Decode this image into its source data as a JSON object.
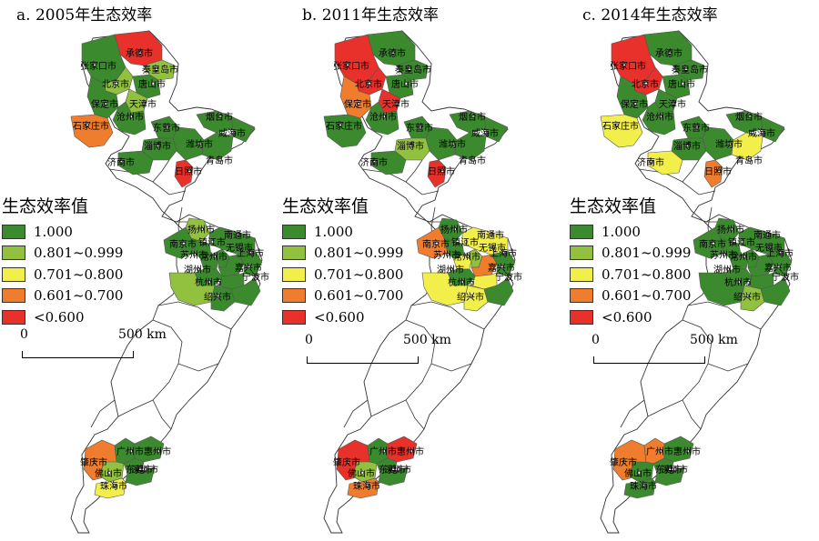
{
  "colors": {
    "c1": "#3c8a2e",
    "c2": "#92c13f",
    "c3": "#f2ef4b",
    "c4": "#ef7d2d",
    "c5": "#e8312a"
  },
  "legend": {
    "title": "生态效率值",
    "items": [
      {
        "label": "1.000",
        "color": "#3c8a2e"
      },
      {
        "label": "0.801~0.999",
        "color": "#92c13f"
      },
      {
        "label": "0.701~0.800",
        "color": "#f2ef4b"
      },
      {
        "label": "0.601~0.700",
        "color": "#ef7d2d"
      },
      {
        "label": "<0.600",
        "color": "#e8312a"
      }
    ]
  },
  "scalebar": {
    "zero": "0",
    "max": "500 km"
  },
  "panels": [
    {
      "title": "a. 2005年生态效率",
      "regions": {
        "chengde": "c5",
        "zhangjiakou": "c1",
        "beijing": "c2",
        "qinhuangdao": "c2",
        "tangshan": "c1",
        "tianjin": "c2",
        "baoding": "c1",
        "cangzhou": "c1",
        "shijiazhuang": "c4",
        "dongying": "c1",
        "weifang": "c1",
        "zibo": "c1",
        "jinan": "c1",
        "yantai": "c1",
        "weihai": "c1",
        "qingdao": "c1",
        "rizhao": "c5",
        "yangzhou": "c2",
        "nantong": "c1",
        "nanjing": "c1",
        "zhenjiang": "c1",
        "changzhou": "c1",
        "wuxi": "c1",
        "suzhou": "c1",
        "shanghai": "c1",
        "huzhou": "c1",
        "jiaxing": "c1",
        "hangzhou": "c2",
        "shaoxing": "c1",
        "ningbo": "c1",
        "zhaoqing": "c4",
        "guangzhou": "c1",
        "huizhou": "c1",
        "foshan": "c2",
        "dongguan": "c1",
        "shenzhen": "c1",
        "zhuhai": "c3"
      },
      "labels": {
        "chengde": "承德市",
        "zhangjiakou": "张家口市",
        "qinhuangdao": "秦皇岛市",
        "beijing": "北京市",
        "tangshan": "唐山市",
        "tianjin": "天津市",
        "baoding": "保定市",
        "cangzhou": "沧州市",
        "shijiazhuang": "石家庄市",
        "yantai": "烟台市",
        "dongying": "东营市",
        "weihai": "威海市",
        "zibo": "淄博市",
        "weifang": "潍坊市",
        "qingdao": "青岛市",
        "jinan": "济南市",
        "rizhao": "日照市",
        "yangzhou": "扬州市",
        "nantong": "南通市",
        "nanjing": "南京市",
        "zhenjiang": "镇江市",
        "changzhou": "常州市",
        "wuxi": "无锡市",
        "shanghai": "上海市",
        "suzhou": "苏州市",
        "jiaxing": "嘉兴市",
        "huzhou": "湖州市",
        "hangzhou": "杭州市",
        "ningbo": "宁波市",
        "shaoxing": "绍兴市",
        "zhaoqing": "肇庆市",
        "guangzhou": "广州市",
        "huizhou": "惠州市",
        "foshan": "佛山市",
        "dongguan": "东莞市",
        "shenzhen": "深圳市",
        "zhuhai": "珠海市"
      }
    },
    {
      "title": "b. 2011年生态效率",
      "regions": {
        "chengde": "c1",
        "zhangjiakou": "c5",
        "beijing": "c5",
        "qinhuangdao": "c1",
        "tangshan": "c1",
        "tianjin": "c5",
        "baoding": "c4",
        "cangzhou": "c1",
        "shijiazhuang": "c1",
        "dongying": "c1",
        "weifang": "c1",
        "zibo": "c2",
        "jinan": "c1",
        "yantai": "c1",
        "weihai": "c1",
        "qingdao": "c1",
        "rizhao": "c5",
        "yangzhou": "c1",
        "nantong": "c3",
        "nanjing": "c4",
        "zhenjiang": "c1",
        "changzhou": "c3",
        "wuxi": "c2",
        "suzhou": "c4",
        "shanghai": "c1",
        "huzhou": "c1",
        "jiaxing": "c3",
        "hangzhou": "c3",
        "shaoxing": "c3",
        "ningbo": "c1",
        "zhaoqing": "c5",
        "guangzhou": "c1",
        "huizhou": "c5",
        "foshan": "c2",
        "dongguan": "c1",
        "shenzhen": "c1",
        "zhuhai": "c4"
      },
      "labels": {
        "chengde": "承德市",
        "zhangjiakou": "张家口市",
        "qinhuangdao": "秦皇岛市",
        "beijing": "北京市",
        "tangshan": "唐山市",
        "tianjin": "天津市",
        "baoding": "保定市",
        "cangzhou": "沧州市",
        "shijiazhuang": "石家庄市",
        "yantai": "烟台市",
        "dongying": "东营市",
        "weihai": "威海市",
        "zibo": "淄博市",
        "weifang": "潍坊市",
        "qingdao": "青岛市",
        "jinan": "济南市",
        "rizhao": "日照市",
        "yangzhou": "扬州市",
        "nantong": "南通市",
        "nanjing": "南京市",
        "zhenjiang": "镇江市",
        "changzhou": "常州市",
        "wuxi": "无锡市",
        "shanghai": "上海市",
        "suzhou": "苏州市",
        "jiaxing": "嘉兴市",
        "huzhou": "湖州市",
        "hangzhou": "杭州市",
        "ningbo": "宁波市",
        "shaoxing": "绍兴市",
        "zhaoqing": "肇庆市",
        "guangzhou": "广州市",
        "huizhou": "惠州市",
        "foshan": "佛山市",
        "dongguan": "东莞市",
        "shenzhen": "深圳市",
        "zhuhai": "珠海市"
      }
    },
    {
      "title": "c. 2014年生态效率",
      "regions": {
        "chengde": "c1",
        "zhangjiakou": "c5",
        "beijing": "c5",
        "qinhuangdao": "c1",
        "tangshan": "c1",
        "tianjin": "c1",
        "baoding": "c1",
        "cangzhou": "c1",
        "shijiazhuang": "c3",
        "dongying": "c1",
        "weifang": "c1",
        "zibo": "c1",
        "jinan": "c3",
        "yantai": "c1",
        "weihai": "c1",
        "qingdao": "c3",
        "rizhao": "c4",
        "yangzhou": "c1",
        "nantong": "c1",
        "nanjing": "c1",
        "zhenjiang": "c1",
        "changzhou": "c1",
        "wuxi": "c1",
        "suzhou": "c1",
        "shanghai": "c1",
        "huzhou": "c1",
        "jiaxing": "c1",
        "hangzhou": "c1",
        "shaoxing": "c2",
        "ningbo": "c1",
        "zhaoqing": "c4",
        "guangzhou": "c4",
        "huizhou": "c1",
        "foshan": "c1",
        "dongguan": "c1",
        "shenzhen": "c1",
        "zhuhai": "c1"
      },
      "labels": {
        "chengde": "承德市",
        "zhangjiakou": "张家口市",
        "qinhuangdao": "秦皇岛市",
        "beijing": "北京市",
        "tangshan": "唐山市",
        "tianjin": "天津市",
        "baoding": "保定市",
        "cangzhou": "沧州市",
        "shijiazhuang": "石家庄市",
        "yantai": "烟台市",
        "dongying": "东营市",
        "weihai": "威海市",
        "zibo": "淄博市",
        "weifang": "潍坊市",
        "qingdao": "青岛市",
        "jinan": "济南市",
        "rizhao": "日照市",
        "yangzhou": "扬州市",
        "nantong": "南通市",
        "nanjing": "南京市",
        "zhenjiang": "镇江市",
        "changzhou": "常州市",
        "wuxi": "无锡市",
        "shanghai": "上海市",
        "suzhou": "苏州市",
        "jiaxing": "嘉兴市",
        "huzhou": "湖州市",
        "hangzhou": "杭州市",
        "ningbo": "宁波市",
        "shaoxing": "绍兴市",
        "zhaoqing": "肇庆市",
        "guangzhou": "广州市",
        "huizhou": "惠州市",
        "foshan": "佛山市",
        "dongguan": "东莞市",
        "shenzhen": "深圳市",
        "zhuhai": "珠海市"
      }
    }
  ]
}
